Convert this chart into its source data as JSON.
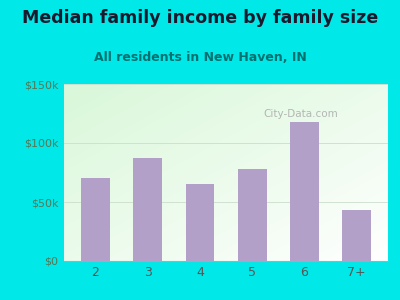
{
  "title": "Median family income by family size",
  "subtitle": "All residents in New Haven, IN",
  "categories": [
    "2",
    "3",
    "4",
    "5",
    "6",
    "7+"
  ],
  "values": [
    70000,
    87000,
    65000,
    78000,
    118000,
    43000
  ],
  "bar_color": "#b3a0c8",
  "background_color": "#00e8e8",
  "title_color": "#1a1a2e",
  "subtitle_color": "#007070",
  "tick_color": "#555555",
  "ytick_color": "#557755",
  "ylim": [
    0,
    150000
  ],
  "yticks": [
    0,
    50000,
    100000,
    150000
  ],
  "ytick_labels": [
    "$0",
    "$50k",
    "$100k",
    "$150k"
  ],
  "watermark": "City-Data.com",
  "title_fontsize": 12.5,
  "subtitle_fontsize": 9,
  "plot_bg_left": "#c8e8c8",
  "plot_bg_right": "#f0faf0"
}
